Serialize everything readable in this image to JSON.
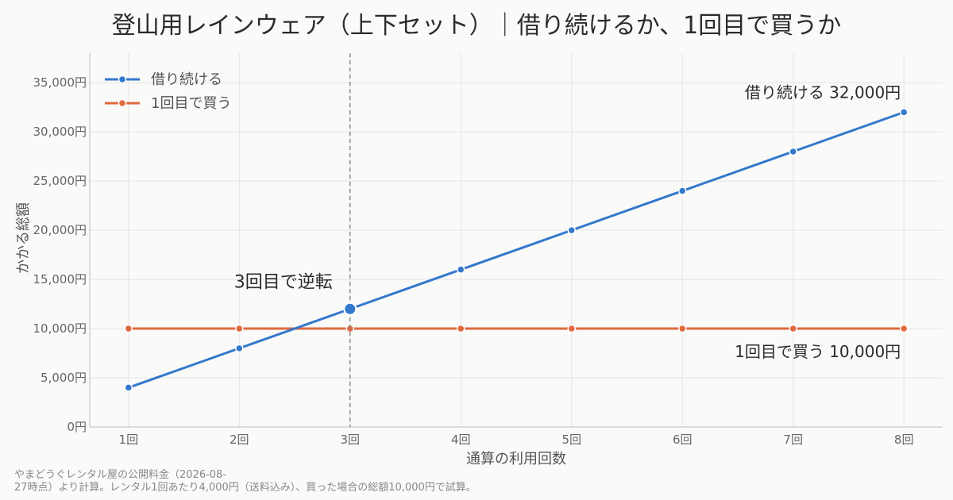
{
  "chart_data": {
    "type": "line",
    "title": "登山用レインウェア（上下セット）｜借り続けるか、1回目で買うか",
    "xlabel": "通算の利用回数",
    "ylabel": "かかる総額",
    "categories": [
      "1回",
      "2回",
      "3回",
      "4回",
      "5回",
      "6回",
      "7回",
      "8回"
    ],
    "x": [
      1,
      2,
      3,
      4,
      5,
      6,
      7,
      8
    ],
    "xlim": [
      0.65,
      8.35
    ],
    "ylim": [
      0,
      38000
    ],
    "yticks": [
      0,
      5000,
      10000,
      15000,
      20000,
      25000,
      30000,
      35000
    ],
    "ytick_labels": [
      "0円",
      "5,000円",
      "10,000円",
      "15,000円",
      "20,000円",
      "25,000円",
      "30,000円",
      "35,000円"
    ],
    "grid": true,
    "legend_position": "top-left",
    "series": [
      {
        "name": "借り続ける",
        "color": "#3478cc",
        "values": [
          4000,
          8000,
          12000,
          16000,
          20000,
          24000,
          28000,
          32000
        ]
      },
      {
        "name": "1回目で買う",
        "color": "#e06a3f",
        "values": [
          10000,
          10000,
          10000,
          10000,
          10000,
          10000,
          10000,
          10000
        ]
      }
    ],
    "crossover": {
      "x": 3,
      "value": 12000,
      "label": "3回目で逆転",
      "line_color": "#888888"
    },
    "end_labels": [
      {
        "series": 0,
        "text": "借り続ける  32,000円"
      },
      {
        "series": 1,
        "text": "1回目で買う  10,000円"
      }
    ],
    "source_lines": [
      "やまどうぐレンタル屋の公開料金（2026-08-",
      "27時点）より計算。レンタル1回あたり4,000円（送料込み）、買った場合の総額10,000円で試算。"
    ]
  }
}
